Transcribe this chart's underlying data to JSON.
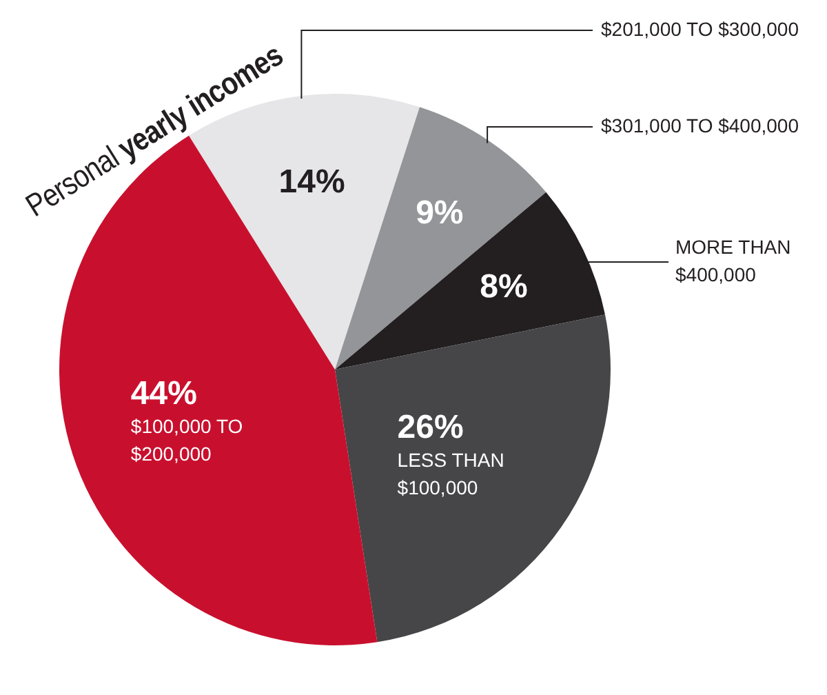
{
  "chart_data": {
    "type": "pie",
    "title": "Personal yearly incomes",
    "categories": [
      "$201,000 TO $300,000",
      "$301,000 TO $400,000",
      "MORE THAN $400,000",
      "LESS THAN $100,000",
      "$100,000 TO $200,000"
    ],
    "values": [
      14,
      9,
      8,
      26,
      44
    ],
    "colors": [
      "#e6e6e8",
      "#939598",
      "#231f20",
      "#464648",
      "#c8102e"
    ],
    "value_labels": [
      "14%",
      "9%",
      "8%",
      "26%",
      "44%"
    ],
    "legend": false
  }
}
